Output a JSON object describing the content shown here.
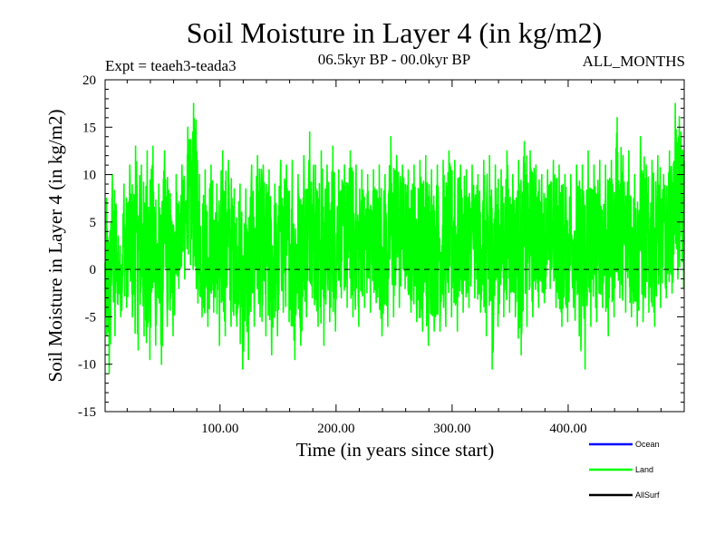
{
  "chart_data": {
    "type": "line",
    "title": "Soil Moisture in Layer 4 (in kg/m2)",
    "subtitle_left": "Expt = teaeh3-teada3",
    "subtitle_center": "06.5kyr BP - 00.0kyr BP",
    "subtitle_right": "ALL_MONTHS",
    "xlabel": "Time (in years since start)",
    "ylabel": "Soil Moisture in Layer 4 (in kg/m2)",
    "xlim": [
      1,
      500
    ],
    "ylim": [
      -15,
      20
    ],
    "x_ticks": [
      100,
      200,
      300,
      400
    ],
    "x_tick_labels": [
      "100.00",
      "200.00",
      "300.00",
      "400.00"
    ],
    "y_ticks": [
      -15,
      -10,
      -5,
      0,
      5,
      10,
      15,
      20
    ],
    "y_tick_labels": [
      "-15",
      "-10",
      "-5",
      "0",
      "5",
      "10",
      "15",
      "20"
    ],
    "zero_line": 0,
    "series": [
      {
        "name": "Land",
        "color": "#00ff00",
        "x_step": 5,
        "x": [
          1,
          6,
          11,
          16,
          21,
          26,
          31,
          36,
          41,
          46,
          51,
          56,
          61,
          66,
          71,
          76,
          81,
          86,
          91,
          96,
          101,
          106,
          111,
          116,
          121,
          126,
          131,
          136,
          141,
          146,
          151,
          156,
          161,
          166,
          171,
          176,
          181,
          186,
          191,
          196,
          201,
          206,
          211,
          216,
          221,
          226,
          231,
          236,
          241,
          246,
          251,
          256,
          261,
          266,
          271,
          276,
          281,
          286,
          291,
          296,
          301,
          306,
          311,
          316,
          321,
          326,
          331,
          336,
          341,
          346,
          351,
          356,
          361,
          366,
          371,
          376,
          381,
          386,
          391,
          396,
          401,
          406,
          411,
          416,
          421,
          426,
          431,
          436,
          441,
          446,
          451,
          456,
          461,
          466,
          471,
          476,
          481,
          486,
          491,
          496
        ],
        "hi": [
          7.5,
          10.0,
          3.5,
          9.0,
          11.0,
          13.0,
          11.0,
          12.5,
          13.0,
          9.0,
          12.5,
          8.0,
          10.0,
          11.0,
          15.0,
          17.5,
          10.0,
          10.5,
          11.0,
          9.0,
          12.5,
          11.5,
          8.5,
          9.0,
          8.5,
          11.0,
          12.0,
          11.0,
          10.5,
          9.0,
          11.5,
          11.0,
          11.5,
          10.0,
          12.0,
          14.5,
          11.0,
          12.5,
          11.0,
          13.0,
          10.5,
          11.0,
          12.5,
          11.0,
          10.5,
          10.0,
          10.5,
          11.0,
          10.0,
          14.0,
          12.0,
          11.0,
          10.5,
          11.0,
          11.5,
          12.0,
          10.5,
          11.0,
          11.5,
          12.5,
          11.5,
          11.0,
          10.5,
          11.0,
          10.0,
          11.5,
          12.0,
          11.0,
          10.5,
          12.5,
          10.0,
          11.5,
          13.5,
          12.5,
          11.0,
          10.0,
          10.5,
          11.5,
          11.0,
          10.0,
          10.0,
          11.0,
          11.0,
          12.5,
          11.0,
          11.5,
          11.0,
          11.5,
          16.0,
          12.0,
          12.5,
          10.0,
          14.0,
          11.0,
          11.5,
          12.0,
          10.0,
          12.5,
          17.5,
          14.5
        ],
        "lo": [
          -11.0,
          -7.0,
          -5.0,
          -4.0,
          -5.0,
          -8.5,
          -7.0,
          -9.5,
          -8.0,
          -10.0,
          -6.0,
          -7.0,
          -2.0,
          -1.0,
          0.5,
          -2.0,
          -5.0,
          -6.0,
          -4.5,
          -8.0,
          -7.0,
          -6.0,
          -6.0,
          -10.5,
          -9.5,
          -6.0,
          -5.0,
          -7.0,
          -9.0,
          -7.0,
          -4.5,
          -5.5,
          -9.5,
          -8.0,
          -5.0,
          -3.0,
          -6.0,
          -8.0,
          -5.5,
          -6.5,
          -3.0,
          -4.0,
          -5.0,
          -6.0,
          -4.0,
          -4.5,
          -3.5,
          -7.0,
          -6.0,
          -5.0,
          -4.0,
          -2.0,
          -4.5,
          -5.5,
          -6.5,
          -8.0,
          -6.5,
          -6.5,
          -6.0,
          -5.0,
          -6.5,
          -4.5,
          -4.0,
          -3.0,
          -4.5,
          -7.0,
          -10.5,
          -6.0,
          -5.0,
          -4.5,
          -5.0,
          -9.0,
          -6.0,
          -5.0,
          -4.0,
          -3.5,
          -2.0,
          -4.0,
          -6.0,
          -5.5,
          -4.0,
          -7.0,
          -10.5,
          -6.0,
          -5.5,
          -4.0,
          -7.0,
          -5.0,
          -3.0,
          -4.5,
          -5.0,
          -6.0,
          -5.5,
          -4.5,
          -6.0,
          -4.0,
          -3.0,
          -2.5,
          -1.0,
          -2.0
        ]
      }
    ],
    "legend_position": "bottom-right",
    "legend": [
      {
        "label": "Ocean",
        "color": "#0000ff"
      },
      {
        "label": "Land",
        "color": "#00ff00"
      },
      {
        "label": "AllSurf",
        "color": "#000000"
      }
    ]
  }
}
